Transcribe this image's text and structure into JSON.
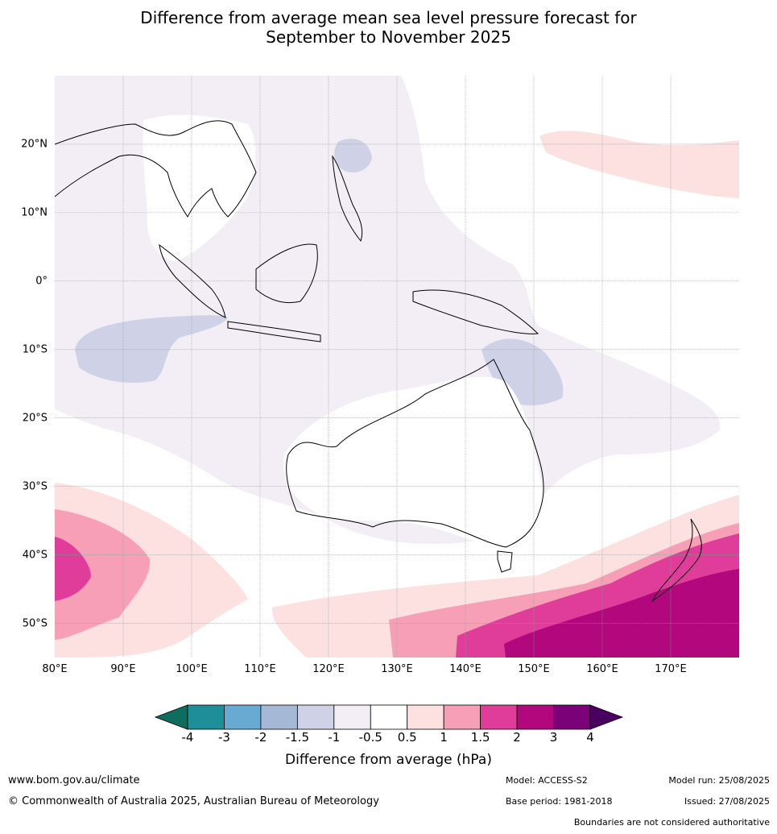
{
  "title": {
    "line1": "Difference from average mean sea level pressure forecast for",
    "line2": "September to November 2025"
  },
  "map": {
    "lon_range": [
      80,
      180
    ],
    "lat_range": [
      -55,
      30
    ],
    "lat_labels": [
      "20°N",
      "10°N",
      "0°",
      "10°S",
      "20°S",
      "30°S",
      "40°S",
      "50°S"
    ],
    "lon_labels": [
      "80°E",
      "90°E",
      "100°E",
      "110°E",
      "120°E",
      "130°E",
      "140°E",
      "150°E",
      "160°E",
      "170°E"
    ]
  },
  "colorbar": {
    "label": "Difference from average (hPa)",
    "ticks": [
      "-4",
      "-3",
      "-2",
      "-1.5",
      "-1",
      "-0.5",
      "0.5",
      "1",
      "1.5",
      "2",
      "3",
      "4"
    ],
    "colors": [
      "#0d6e5f",
      "#1e8f98",
      "#68aad1",
      "#a5b9d6",
      "#cfd2e6",
      "#f3edf5",
      "#ffffff",
      "#fde0e0",
      "#f79fb7",
      "#e03d9a",
      "#b3077e",
      "#7a0178",
      "#4a005f"
    ]
  },
  "footer": {
    "url": "www.bom.gov.au/climate",
    "copyright": "© Commonwealth of Australia 2025, Australian Bureau of Meteorology",
    "model": "Model: ACCESS-S2",
    "base_period": "Base period: 1981-2018",
    "model_run": "Model run: 25/08/2025",
    "issued": "Issued: 27/08/2025",
    "boundaries": "Boundaries are not considered authoritative"
  }
}
